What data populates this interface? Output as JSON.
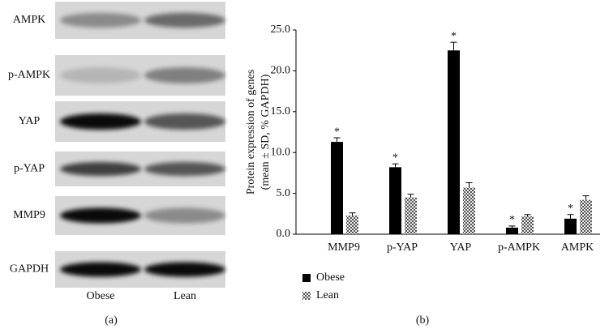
{
  "blot": {
    "rows": [
      "AMPK",
      "p-AMPK",
      "YAP",
      "p-YAP",
      "MMP9",
      "GAPDH"
    ],
    "columns": [
      "Obese",
      "Lean"
    ],
    "caption": "(a)"
  },
  "chart_data": {
    "type": "bar",
    "caption": "(b)",
    "ylabel": [
      "Protein expression of genes",
      "(mean ± SD, % GAPDH)"
    ],
    "categories": [
      "MMP9",
      "p-YAP",
      "YAP",
      "p-AMPK",
      "AMPK"
    ],
    "series": [
      {
        "name": "Obese",
        "color": "#000000",
        "values": [
          11.3,
          8.2,
          22.5,
          0.8,
          1.9
        ],
        "errors": [
          0.5,
          0.4,
          1.0,
          0.2,
          0.5
        ],
        "significance": [
          "*",
          "*",
          "*",
          "*",
          "*"
        ]
      },
      {
        "name": "Lean",
        "color": "#7a7a7a",
        "pattern": "hatched",
        "values": [
          2.3,
          4.5,
          5.7,
          2.2,
          4.2
        ],
        "errors": [
          0.3,
          0.4,
          0.6,
          0.2,
          0.5
        ]
      }
    ],
    "ylim": [
      0,
      25
    ],
    "yticks": [
      {
        "value": 0,
        "label": "0.0"
      },
      {
        "value": 5,
        "label": "5.0"
      },
      {
        "value": 10,
        "label": "10.0"
      },
      {
        "value": 15,
        "label": "15.0"
      },
      {
        "value": 20,
        "label": "20.0"
      },
      {
        "value": 25,
        "label": "25.0"
      }
    ],
    "grid": false,
    "legend": "bottom-left"
  }
}
